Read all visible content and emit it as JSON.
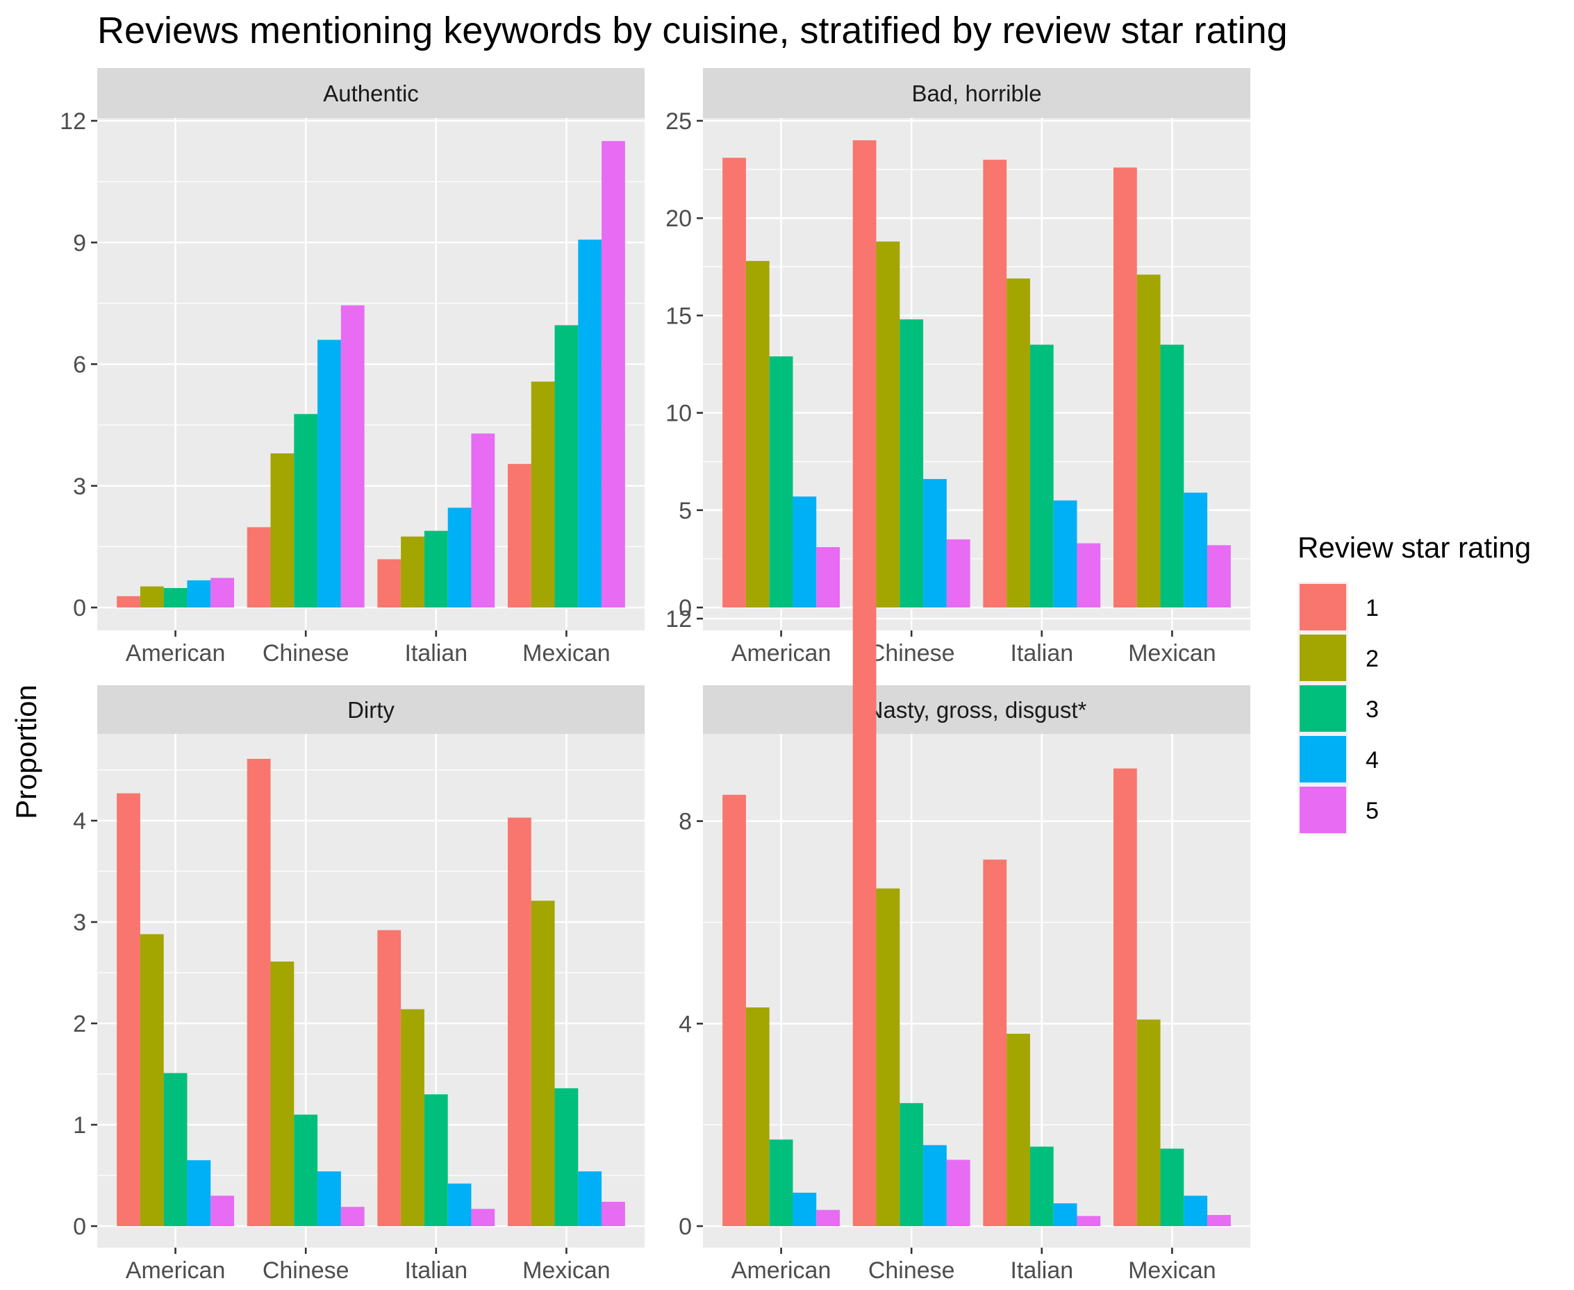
{
  "chart_data": {
    "type": "bar",
    "title": "Reviews mentioning keywords by cuisine, stratified by review star rating",
    "xlabel": "",
    "ylabel": "Proportion",
    "categories": [
      "American",
      "Chinese",
      "Italian",
      "Mexican"
    ],
    "legend": {
      "title": "Review star rating",
      "position": "right",
      "labels": [
        "1",
        "2",
        "3",
        "4",
        "5"
      ],
      "colors": [
        "#F8766D",
        "#A3A500",
        "#00BF7D",
        "#00B0F6",
        "#E76BF3"
      ]
    },
    "panels": [
      {
        "name": "Authentic",
        "ylim": [
          0,
          12
        ],
        "yticks": [
          0,
          3,
          6,
          9,
          12
        ],
        "series": [
          {
            "name": "1",
            "values": [
              0.28,
              1.98,
              1.19,
              3.54
            ]
          },
          {
            "name": "2",
            "values": [
              0.52,
              3.8,
              1.75,
              5.57
            ]
          },
          {
            "name": "3",
            "values": [
              0.48,
              4.77,
              1.89,
              6.96
            ]
          },
          {
            "name": "4",
            "values": [
              0.67,
              6.6,
              2.46,
              9.07
            ]
          },
          {
            "name": "5",
            "values": [
              0.73,
              7.45,
              4.29,
              11.5
            ]
          }
        ]
      },
      {
        "name": "Bad, horrible",
        "ylim": [
          0,
          25
        ],
        "yticks": [
          0,
          5,
          10,
          15,
          20,
          25
        ],
        "series": [
          {
            "name": "1",
            "values": [
              23.1,
              24.0,
              23.0,
              22.6
            ]
          },
          {
            "name": "2",
            "values": [
              17.8,
              18.8,
              16.9,
              17.1
            ]
          },
          {
            "name": "3",
            "values": [
              12.9,
              14.8,
              13.5,
              13.5
            ]
          },
          {
            "name": "4",
            "values": [
              5.7,
              6.6,
              5.5,
              5.9
            ]
          },
          {
            "name": "5",
            "values": [
              3.1,
              3.5,
              3.3,
              3.2
            ]
          }
        ]
      },
      {
        "name": "Dirty",
        "ylim": [
          0,
          4.6
        ],
        "yticks": [
          0,
          1,
          2,
          3,
          4
        ],
        "series": [
          {
            "name": "1",
            "values": [
              4.27,
              4.61,
              2.92,
              4.03
            ]
          },
          {
            "name": "2",
            "values": [
              2.88,
              2.61,
              2.14,
              3.21
            ]
          },
          {
            "name": "3",
            "values": [
              1.51,
              1.1,
              1.3,
              1.36
            ]
          },
          {
            "name": "4",
            "values": [
              0.65,
              0.54,
              0.42,
              0.54
            ]
          },
          {
            "name": "5",
            "values": [
              0.3,
              0.19,
              0.17,
              0.24
            ]
          }
        ]
      },
      {
        "name": "Nasty, gross, disgust*",
        "ylim": [
          0,
          12.4
        ],
        "yticks": [
          0,
          4,
          8,
          12
        ],
        "series": [
          {
            "name": "1",
            "values": [
              8.52,
              12.37,
              7.24,
              9.04
            ]
          },
          {
            "name": "2",
            "values": [
              4.32,
              6.67,
              3.8,
              4.08
            ]
          },
          {
            "name": "3",
            "values": [
              1.71,
              2.43,
              1.57,
              1.53
            ]
          },
          {
            "name": "4",
            "values": [
              0.66,
              1.6,
              0.45,
              0.6
            ]
          },
          {
            "name": "5",
            "values": [
              0.32,
              1.31,
              0.2,
              0.22
            ]
          }
        ]
      }
    ]
  }
}
